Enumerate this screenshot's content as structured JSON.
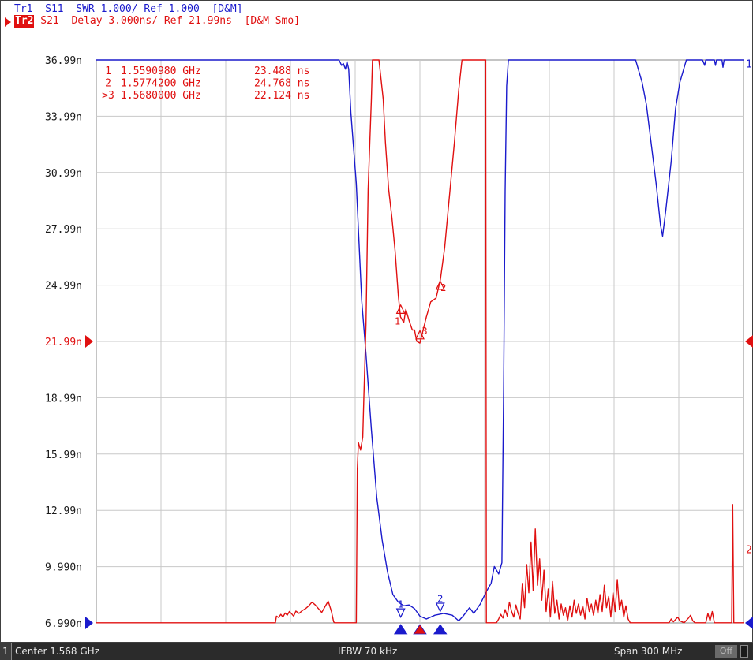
{
  "trace_headers": {
    "tr1": "Tr1  S11  SWR 1.000/ Ref 1.000  [D&M]",
    "tr2_tag": "Tr2",
    "tr2": " S21  Delay 3.000ns/ Ref 21.99ns  [D&M Smo]"
  },
  "marker_table": [
    {
      "id": "1",
      "freq": "1.5590980 GHz",
      "value": "23.488 ns"
    },
    {
      "id": "2",
      "freq": "1.5774200 GHz",
      "value": "24.768 ns"
    },
    {
      "id": ">3",
      "freq": "1.5680000 GHz",
      "value": "22.124 ns"
    }
  ],
  "status_bar": {
    "channel": "1",
    "center": "Center 1.568 GHz",
    "ifbw": "IFBW 70 kHz",
    "span": "Span 300 MHz",
    "off_label": "Off"
  },
  "colors": {
    "trace1": "#1a1acc",
    "trace2": "#e01010",
    "grid": "#c8c8c8",
    "background": "#ffffff",
    "status_bar": "#2b2b2b"
  },
  "chart_data": {
    "type": "line",
    "y_tick_labels": [
      "36.99n",
      "33.99n",
      "30.99n",
      "27.99n",
      "24.99n",
      "21.99n",
      "18.99n",
      "15.99n",
      "12.99n",
      "9.990n",
      "6.990n"
    ],
    "ylim": [
      6.99,
      36.99
    ],
    "xlim": [
      1.418,
      1.718
    ],
    "x_unit": "GHz",
    "y_unit": "ns",
    "grid": true,
    "reference_level": 21.99,
    "right_end_labels": {
      "trace1": "1",
      "trace2": "2"
    },
    "series": [
      {
        "trace": "Tr1 S11 SWR",
        "color": "#1a1acc",
        "points": [
          [
            1.418,
            37.5
          ],
          [
            1.5305,
            37.5
          ],
          [
            1.5317,
            36.7
          ],
          [
            1.5325,
            36.8
          ],
          [
            1.5335,
            36.5
          ],
          [
            1.5342,
            36.9
          ],
          [
            1.535,
            36.5
          ],
          [
            1.536,
            34.2
          ],
          [
            1.5385,
            30.4
          ],
          [
            1.541,
            24.2
          ],
          [
            1.543,
            21.3
          ],
          [
            1.5455,
            17.3
          ],
          [
            1.548,
            13.7
          ],
          [
            1.5505,
            11.4
          ],
          [
            1.553,
            9.7
          ],
          [
            1.5555,
            8.5
          ],
          [
            1.558,
            8.1
          ],
          [
            1.5605,
            7.9
          ],
          [
            1.563,
            7.95
          ],
          [
            1.5655,
            7.75
          ],
          [
            1.568,
            7.35
          ],
          [
            1.571,
            7.2
          ],
          [
            1.575,
            7.4
          ],
          [
            1.579,
            7.5
          ],
          [
            1.583,
            7.4
          ],
          [
            1.586,
            7.1
          ],
          [
            1.588,
            7.35
          ],
          [
            1.591,
            7.8
          ],
          [
            1.593,
            7.5
          ],
          [
            1.596,
            8.0
          ],
          [
            1.599,
            8.7
          ],
          [
            1.601,
            9.1
          ],
          [
            1.6025,
            10.0
          ],
          [
            1.6045,
            9.6
          ],
          [
            1.606,
            10.2
          ],
          [
            1.6068,
            19.5
          ],
          [
            1.6075,
            30.0
          ],
          [
            1.6082,
            35.6
          ],
          [
            1.609,
            37.0
          ],
          [
            1.668,
            37.0
          ],
          [
            1.671,
            35.8
          ],
          [
            1.673,
            34.6
          ],
          [
            1.6775,
            30.4
          ],
          [
            1.6795,
            28.2
          ],
          [
            1.6805,
            27.6
          ],
          [
            1.682,
            29.0
          ],
          [
            1.6845,
            31.6
          ],
          [
            1.6865,
            34.4
          ],
          [
            1.6885,
            35.8
          ],
          [
            1.6915,
            37.0
          ],
          [
            1.699,
            37.0
          ],
          [
            1.7,
            36.7
          ],
          [
            1.7005,
            37.0
          ],
          [
            1.7045,
            37.0
          ],
          [
            1.705,
            36.7
          ],
          [
            1.7055,
            37.0
          ],
          [
            1.708,
            37.0
          ],
          [
            1.7085,
            36.6
          ],
          [
            1.709,
            37.0
          ],
          [
            1.713,
            37.0
          ],
          [
            1.718,
            37.0
          ]
        ]
      },
      {
        "trace": "Tr2 S21 Delay",
        "color": "#e01010",
        "points": [
          [
            1.418,
            7.0
          ],
          [
            1.501,
            7.0
          ],
          [
            1.5015,
            7.35
          ],
          [
            1.5025,
            7.28
          ],
          [
            1.5035,
            7.45
          ],
          [
            1.5045,
            7.3
          ],
          [
            1.5055,
            7.52
          ],
          [
            1.5065,
            7.4
          ],
          [
            1.5075,
            7.6
          ],
          [
            1.5085,
            7.48
          ],
          [
            1.5095,
            7.35
          ],
          [
            1.5105,
            7.62
          ],
          [
            1.512,
            7.5
          ],
          [
            1.5135,
            7.65
          ],
          [
            1.515,
            7.75
          ],
          [
            1.5165,
            7.9
          ],
          [
            1.518,
            8.1
          ],
          [
            1.5195,
            7.95
          ],
          [
            1.521,
            7.75
          ],
          [
            1.5225,
            7.55
          ],
          [
            1.524,
            7.85
          ],
          [
            1.5255,
            8.15
          ],
          [
            1.527,
            7.6
          ],
          [
            1.528,
            7.05
          ],
          [
            1.5285,
            7.0
          ],
          [
            1.5385,
            7.0
          ],
          [
            1.539,
            15.2
          ],
          [
            1.5395,
            16.6
          ],
          [
            1.5405,
            16.2
          ],
          [
            1.5415,
            16.9
          ],
          [
            1.542,
            18.9
          ],
          [
            1.543,
            22.9
          ],
          [
            1.544,
            30.1
          ],
          [
            1.5455,
            34.9
          ],
          [
            1.546,
            37.0
          ],
          [
            1.549,
            37.0
          ],
          [
            1.551,
            34.9
          ],
          [
            1.552,
            32.6
          ],
          [
            1.5535,
            30.1
          ],
          [
            1.555,
            28.6
          ],
          [
            1.5565,
            26.8
          ],
          [
            1.558,
            24.4
          ],
          [
            1.559,
            23.3
          ],
          [
            1.5605,
            23.0
          ],
          [
            1.5615,
            23.7
          ],
          [
            1.563,
            23.1
          ],
          [
            1.5645,
            22.6
          ],
          [
            1.5655,
            22.6
          ],
          [
            1.5665,
            22.0
          ],
          [
            1.568,
            21.9
          ],
          [
            1.5695,
            22.6
          ],
          [
            1.571,
            23.3
          ],
          [
            1.573,
            24.1
          ],
          [
            1.5755,
            24.3
          ],
          [
            1.5775,
            25.3
          ],
          [
            1.5795,
            27.0
          ],
          [
            1.5815,
            29.5
          ],
          [
            1.584,
            32.6
          ],
          [
            1.586,
            35.4
          ],
          [
            1.5875,
            37.0
          ],
          [
            1.5985,
            37.0
          ],
          [
            1.5988,
            7.0
          ],
          [
            1.6035,
            7.0
          ],
          [
            1.6045,
            7.2
          ],
          [
            1.6055,
            7.45
          ],
          [
            1.6065,
            7.25
          ],
          [
            1.6075,
            7.7
          ],
          [
            1.6085,
            7.35
          ],
          [
            1.6095,
            8.1
          ],
          [
            1.6105,
            7.6
          ],
          [
            1.6115,
            7.3
          ],
          [
            1.6125,
            7.95
          ],
          [
            1.6135,
            7.5
          ],
          [
            1.6145,
            7.2
          ],
          [
            1.6155,
            9.1
          ],
          [
            1.6165,
            7.8
          ],
          [
            1.6175,
            10.1
          ],
          [
            1.6185,
            8.6
          ],
          [
            1.6195,
            11.3
          ],
          [
            1.6205,
            8.7
          ],
          [
            1.6215,
            12.0
          ],
          [
            1.6225,
            9.0
          ],
          [
            1.6235,
            10.4
          ],
          [
            1.6245,
            8.2
          ],
          [
            1.6255,
            9.8
          ],
          [
            1.6265,
            7.6
          ],
          [
            1.6275,
            8.8
          ],
          [
            1.6285,
            7.3
          ],
          [
            1.6295,
            9.2
          ],
          [
            1.6305,
            7.5
          ],
          [
            1.6315,
            8.2
          ],
          [
            1.6325,
            7.2
          ],
          [
            1.6335,
            8.0
          ],
          [
            1.6345,
            7.4
          ],
          [
            1.6355,
            7.8
          ],
          [
            1.6365,
            7.1
          ],
          [
            1.6375,
            7.9
          ],
          [
            1.6385,
            7.3
          ],
          [
            1.6395,
            8.2
          ],
          [
            1.6405,
            7.5
          ],
          [
            1.6415,
            8.0
          ],
          [
            1.6425,
            7.4
          ],
          [
            1.6435,
            7.9
          ],
          [
            1.6445,
            7.2
          ],
          [
            1.6455,
            8.3
          ],
          [
            1.6465,
            7.6
          ],
          [
            1.6475,
            8.0
          ],
          [
            1.6485,
            7.4
          ],
          [
            1.6495,
            8.2
          ],
          [
            1.6505,
            7.5
          ],
          [
            1.6515,
            8.5
          ],
          [
            1.6525,
            7.6
          ],
          [
            1.6535,
            9.0
          ],
          [
            1.6545,
            7.8
          ],
          [
            1.6555,
            8.4
          ],
          [
            1.6565,
            7.3
          ],
          [
            1.6575,
            8.6
          ],
          [
            1.6585,
            7.6
          ],
          [
            1.6595,
            9.3
          ],
          [
            1.6605,
            7.7
          ],
          [
            1.6615,
            8.2
          ],
          [
            1.6625,
            7.3
          ],
          [
            1.6635,
            7.9
          ],
          [
            1.6645,
            7.2
          ],
          [
            1.6655,
            7.0
          ],
          [
            1.6835,
            7.0
          ],
          [
            1.6845,
            7.2
          ],
          [
            1.6855,
            7.05
          ],
          [
            1.6875,
            7.3
          ],
          [
            1.6885,
            7.1
          ],
          [
            1.6905,
            7.0
          ],
          [
            1.6925,
            7.25
          ],
          [
            1.6935,
            7.4
          ],
          [
            1.6945,
            7.1
          ],
          [
            1.6955,
            7.0
          ],
          [
            1.7005,
            7.0
          ],
          [
            1.7015,
            7.5
          ],
          [
            1.7025,
            7.1
          ],
          [
            1.7035,
            7.6
          ],
          [
            1.7045,
            7.0
          ],
          [
            1.7125,
            7.0
          ],
          [
            1.713,
            13.3
          ],
          [
            1.7135,
            7.0
          ],
          [
            1.718,
            7.0
          ]
        ]
      }
    ],
    "markers": [
      {
        "id": "1",
        "trace": "Tr2",
        "x": 1.559098,
        "y": 23.488
      },
      {
        "id": "2",
        "trace": "Tr2",
        "x": 1.57742,
        "y": 24.768
      },
      {
        "id": "3",
        "trace": "Tr2",
        "x": 1.568,
        "y": 22.124
      },
      {
        "id": "1",
        "trace": "Tr1",
        "x": 1.559098,
        "y": 7.3
      },
      {
        "id": "2",
        "trace": "Tr1",
        "x": 1.57742,
        "y": 7.6
      }
    ]
  }
}
